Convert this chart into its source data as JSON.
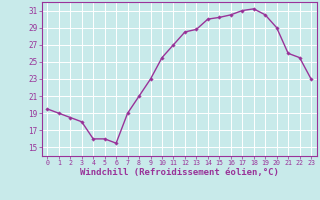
{
  "x": [
    0,
    1,
    2,
    3,
    4,
    5,
    6,
    7,
    8,
    9,
    10,
    11,
    12,
    13,
    14,
    15,
    16,
    17,
    18,
    19,
    20,
    21,
    22,
    23
  ],
  "y": [
    19.5,
    19.0,
    18.5,
    18.0,
    16.0,
    16.0,
    15.5,
    19.0,
    21.0,
    23.0,
    25.5,
    27.0,
    28.5,
    28.8,
    30.0,
    30.2,
    30.5,
    31.0,
    31.2,
    30.5,
    29.0,
    26.0,
    25.5,
    23.0
  ],
  "line_color": "#993399",
  "marker": "D",
  "marker_size": 1.8,
  "background_color": "#c8eaea",
  "grid_color": "#ffffff",
  "xlabel": "Windchill (Refroidissement éolien,°C)",
  "xlabel_color": "#993399",
  "tick_color": "#993399",
  "spine_color": "#993399",
  "ylim": [
    14,
    32
  ],
  "xlim": [
    -0.5,
    23.5
  ],
  "yticks": [
    15,
    17,
    19,
    21,
    23,
    25,
    27,
    29,
    31
  ],
  "xticks": [
    0,
    1,
    2,
    3,
    4,
    5,
    6,
    7,
    8,
    9,
    10,
    11,
    12,
    13,
    14,
    15,
    16,
    17,
    18,
    19,
    20,
    21,
    22,
    23
  ],
  "xlabel_fontsize": 6.5,
  "tick_fontsize": 5.5,
  "xtick_fontsize": 4.8,
  "line_width": 1.0
}
